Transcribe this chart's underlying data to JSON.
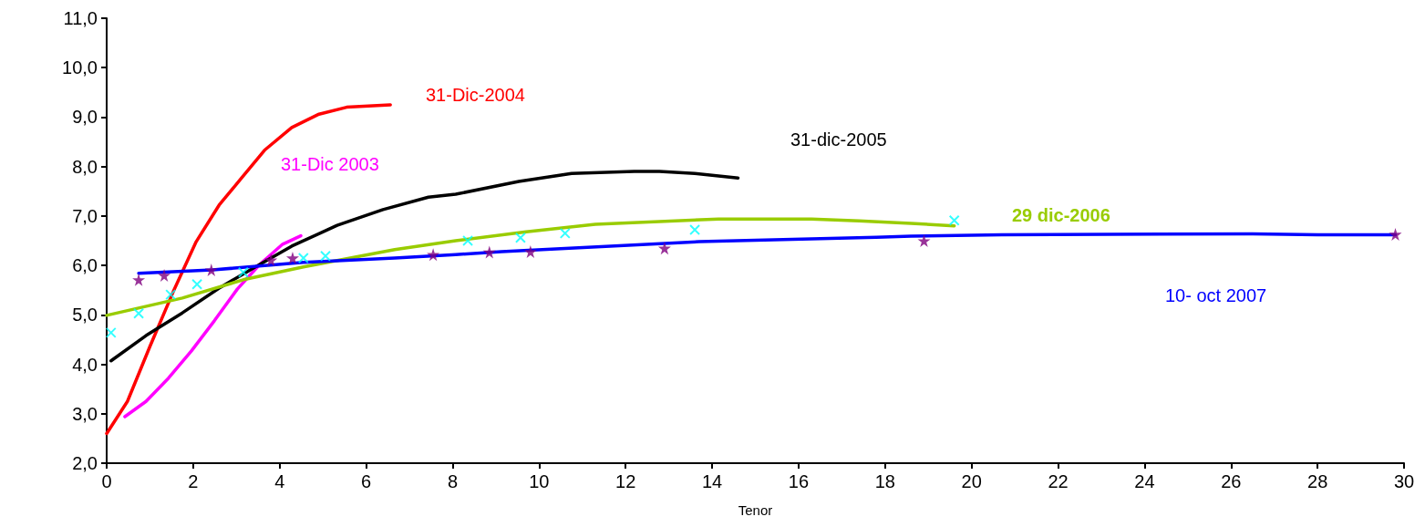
{
  "chart_data": {
    "type": "line",
    "xlabel": "Tenor",
    "xlim": [
      0,
      30
    ],
    "xticks": [
      0,
      2,
      4,
      6,
      8,
      10,
      12,
      14,
      16,
      18,
      20,
      22,
      24,
      26,
      28,
      30
    ],
    "ylim": [
      2,
      11
    ],
    "yticks": [
      {
        "value": 2,
        "label": "2,0"
      },
      {
        "value": 3,
        "label": "3,0"
      },
      {
        "value": 4,
        "label": "4,0"
      },
      {
        "value": 5,
        "label": "5,0"
      },
      {
        "value": 6,
        "label": "6,0"
      },
      {
        "value": 7,
        "label": "7,0"
      },
      {
        "value": 8,
        "label": "8,0"
      },
      {
        "value": 9,
        "label": "9,0"
      },
      {
        "value": 10,
        "label": "10,0"
      },
      {
        "value": 11,
        "label": "11,0"
      }
    ],
    "grid": false,
    "marker": "none",
    "line_style": "solid",
    "series": [
      {
        "name": "31-Dic-2004",
        "color": "#ff0000",
        "x": [
          0,
          0.48,
          1.0,
          1.54,
          2.07,
          2.6,
          3.12,
          3.65,
          4.28,
          4.91,
          5.55,
          6.56
        ],
        "values": [
          2.6,
          3.25,
          4.36,
          5.47,
          6.48,
          7.22,
          7.77,
          8.33,
          8.79,
          9.06,
          9.2,
          9.25
        ]
      },
      {
        "name": "31-Dic 2003",
        "color": "#ff00ff",
        "x": [
          0.42,
          0.91,
          1.43,
          1.96,
          2.49,
          3.02,
          3.54,
          4.07,
          4.49
        ],
        "values": [
          2.94,
          3.25,
          3.72,
          4.27,
          4.88,
          5.52,
          6.02,
          6.43,
          6.6
        ]
      },
      {
        "name": "31-dic-2005",
        "color": "#000000",
        "x": [
          0.1,
          0.91,
          1.75,
          2.6,
          3.44,
          4.28,
          5.33,
          6.39,
          7.44,
          8.07,
          9.53,
          10.75,
          12.2,
          12.78,
          13.6,
          14.6
        ],
        "values": [
          4.07,
          4.58,
          5.04,
          5.54,
          5.97,
          6.39,
          6.81,
          7.13,
          7.38,
          7.44,
          7.7,
          7.86,
          7.9,
          7.9,
          7.86,
          7.77
        ]
      },
      {
        "name": "29 dic-2006",
        "color": "#99cc00",
        "x": [
          0,
          1.75,
          3.16,
          4.55,
          6.66,
          8.07,
          9.7,
          11.3,
          14.15,
          16.3,
          17.4,
          18.6,
          19.6
        ],
        "values": [
          4.99,
          5.34,
          5.71,
          5.97,
          6.32,
          6.5,
          6.68,
          6.83,
          6.94,
          6.94,
          6.9,
          6.85,
          6.8
        ]
      },
      {
        "name": "10- oct 2007",
        "color": "#0000ff",
        "x": [
          0.74,
          2.45,
          4.55,
          6.66,
          8.07,
          9.13,
          13.7,
          17.8,
          18.6,
          20.7,
          26.5,
          28,
          29.8
        ],
        "values": [
          5.84,
          5.91,
          6.06,
          6.15,
          6.22,
          6.28,
          6.48,
          6.57,
          6.59,
          6.62,
          6.64,
          6.62,
          6.62
        ]
      },
      {
        "type": "scatter",
        "marker": "cross",
        "color": "#00ffff",
        "x": [
          0.1,
          0.74,
          1.48,
          2.09,
          3.16,
          4.55,
          5.06,
          8.35,
          9.57,
          10.6,
          13.6,
          19.6
        ],
        "values": [
          4.64,
          5.03,
          5.41,
          5.62,
          5.86,
          6.15,
          6.19,
          6.5,
          6.56,
          6.65,
          6.72,
          6.91
        ]
      },
      {
        "type": "scatter",
        "marker": "star",
        "color": "#800080",
        "x": [
          0.74,
          1.33,
          2.42,
          3.8,
          4.3,
          7.55,
          8.85,
          9.8,
          12.9,
          18.9,
          29.8
        ],
        "values": [
          5.71,
          5.8,
          5.91,
          6.11,
          6.15,
          6.22,
          6.27,
          6.28,
          6.35,
          6.5,
          6.63
        ]
      }
    ]
  }
}
